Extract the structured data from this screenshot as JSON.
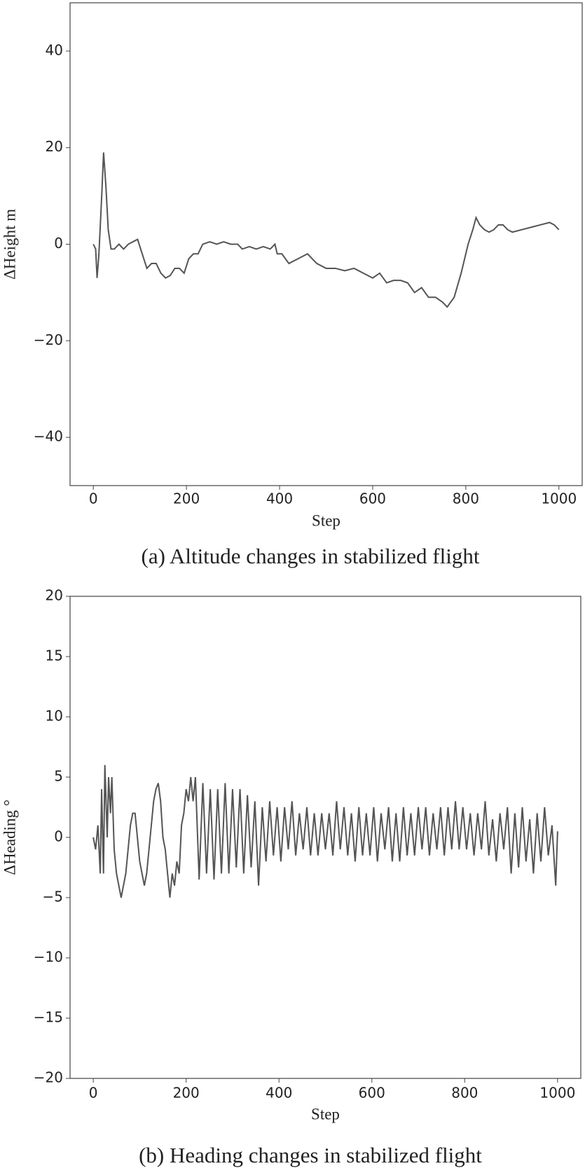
{
  "chart_data": [
    {
      "type": "line",
      "caption": "(a) Altitude changes in stabilized flight",
      "xlabel": "Step",
      "ylabel": "ΔHeight m",
      "xlim": [
        -50,
        1050
      ],
      "ylim": [
        -50,
        50
      ],
      "xticks": [
        0,
        200,
        400,
        600,
        800,
        1000
      ],
      "yticks": [
        {
          "value": -40,
          "label": "−40"
        },
        {
          "value": -20,
          "label": "−20"
        },
        0,
        20,
        40
      ],
      "color": "#555555",
      "x": [
        0,
        5,
        8,
        12,
        18,
        22,
        27,
        32,
        38,
        45,
        55,
        65,
        75,
        85,
        95,
        105,
        115,
        125,
        135,
        145,
        155,
        165,
        175,
        185,
        195,
        205,
        215,
        225,
        235,
        250,
        265,
        280,
        295,
        310,
        320,
        335,
        350,
        365,
        380,
        390,
        395,
        405,
        420,
        440,
        460,
        480,
        500,
        520,
        540,
        560,
        580,
        600,
        615,
        630,
        645,
        660,
        675,
        690,
        705,
        720,
        735,
        750,
        760,
        775,
        790,
        805,
        815,
        822,
        830,
        840,
        850,
        860,
        870,
        880,
        890,
        900,
        920,
        940,
        960,
        980,
        990,
        1000
      ],
      "values": [
        0,
        -1,
        -7,
        -2,
        10,
        19,
        12,
        3,
        -1,
        -1,
        0,
        -1,
        0,
        0.5,
        1,
        -2,
        -5,
        -4,
        -4,
        -6,
        -7,
        -6.5,
        -5,
        -5,
        -6,
        -3,
        -2,
        -2,
        0,
        0.5,
        0,
        0.5,
        0,
        0,
        -1,
        -0.5,
        -1,
        -0.5,
        -1,
        0,
        -2,
        -2,
        -4,
        -3,
        -2,
        -4,
        -5,
        -5,
        -5.5,
        -5,
        -6,
        -7,
        -6,
        -8,
        -7.5,
        -7.5,
        -8,
        -10,
        -9,
        -11,
        -11,
        -12,
        -13,
        -11,
        -6,
        0,
        3,
        5.5,
        4,
        3,
        2.5,
        3,
        4,
        4,
        3,
        2.5,
        3,
        3.5,
        4,
        4.5,
        4,
        3
      ]
    },
    {
      "type": "line",
      "caption": "(b) Heading changes in stabilized flight",
      "xlabel": "Step",
      "ylabel": "ΔHeading °",
      "xlim": [
        -50,
        1050
      ],
      "ylim": [
        -20,
        20
      ],
      "xticks": [
        0,
        200,
        400,
        600,
        800,
        1000
      ],
      "yticks": [
        {
          "value": -20,
          "label": "−20"
        },
        {
          "value": -15,
          "label": "−15"
        },
        {
          "value": -10,
          "label": "−10"
        },
        {
          "value": -5,
          "label": "−5"
        },
        0,
        5,
        10,
        15,
        20
      ],
      "color": "#555555",
      "x": [
        0,
        5,
        10,
        15,
        18,
        22,
        25,
        30,
        33,
        37,
        40,
        45,
        50,
        55,
        60,
        65,
        70,
        75,
        80,
        85,
        90,
        95,
        100,
        105,
        110,
        115,
        120,
        125,
        130,
        135,
        140,
        145,
        150,
        155,
        160,
        165,
        170,
        175,
        180,
        185,
        190,
        195,
        200,
        205,
        210,
        215,
        220,
        228,
        236,
        244,
        252,
        260,
        268,
        276,
        284,
        292,
        300,
        308,
        316,
        324,
        332,
        340,
        348,
        356,
        364,
        372,
        380,
        388,
        396,
        404,
        412,
        420,
        428,
        436,
        444,
        452,
        460,
        468,
        476,
        484,
        492,
        500,
        508,
        516,
        524,
        532,
        540,
        548,
        556,
        564,
        572,
        580,
        588,
        596,
        604,
        612,
        620,
        628,
        636,
        644,
        652,
        660,
        668,
        676,
        684,
        692,
        700,
        708,
        716,
        724,
        732,
        740,
        748,
        756,
        764,
        772,
        780,
        788,
        796,
        804,
        812,
        820,
        828,
        836,
        844,
        852,
        860,
        868,
        876,
        884,
        892,
        900,
        908,
        916,
        924,
        932,
        940,
        948,
        956,
        964,
        972,
        980,
        988,
        996,
        1000
      ],
      "values": [
        0,
        -1,
        1,
        -3,
        4,
        -3,
        6,
        0,
        5,
        2,
        5,
        -1,
        -3,
        -4,
        -5,
        -4,
        -3,
        -1,
        1,
        2,
        2,
        0,
        -2,
        -3,
        -4,
        -3,
        -1,
        1,
        3,
        4,
        4.5,
        3,
        0,
        -1,
        -3,
        -5,
        -3,
        -4,
        -2,
        -3,
        1,
        2,
        4,
        3,
        5,
        3,
        5,
        -3.5,
        4.5,
        -3,
        4,
        -3.5,
        4,
        -3,
        4.5,
        -3,
        4,
        -2.5,
        4,
        -3,
        3.5,
        -2.5,
        3,
        -4,
        2.5,
        -2,
        3,
        -1.5,
        2.5,
        -2,
        2.5,
        -1,
        3,
        -1.5,
        2,
        -1,
        2.5,
        -1.5,
        2,
        -1.5,
        2,
        -1,
        2,
        -1.5,
        3,
        -1,
        2.5,
        -1.5,
        2,
        -2,
        2.5,
        -1.5,
        2,
        -1.5,
        2.5,
        -2,
        2,
        -1,
        2.5,
        -2,
        2,
        -2,
        2.5,
        -1.5,
        2,
        -1.5,
        2.5,
        -1,
        2.5,
        -1.5,
        2,
        -1,
        2.5,
        -1.5,
        2.5,
        -1,
        3,
        -1,
        2.5,
        -1,
        2,
        -1.5,
        2,
        -1,
        3,
        -1.5,
        1.5,
        -2,
        2,
        -1,
        2.5,
        -3,
        2,
        -2.5,
        2.5,
        -2,
        1.5,
        -3,
        2,
        -2,
        2.5,
        -1.5,
        1,
        -4,
        0.5
      ]
    }
  ]
}
